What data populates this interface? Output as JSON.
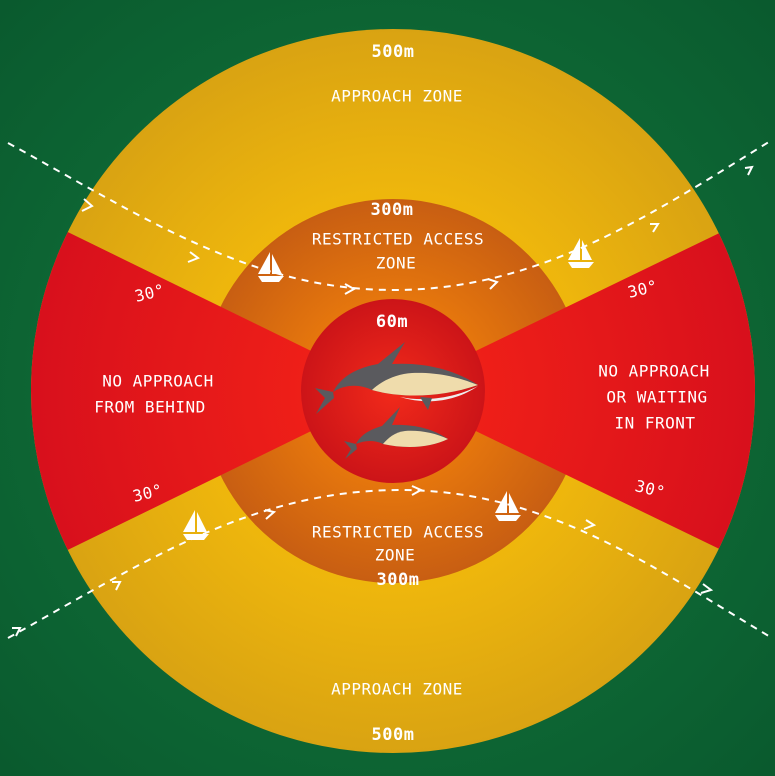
{
  "zones": {
    "approach_top": {
      "distance": "500m",
      "label": "APPROACH ZONE"
    },
    "restricted_top": {
      "distance": "300m",
      "label_lines": [
        "RESTRICTED ACCESS",
        "ZONE"
      ]
    },
    "core": {
      "distance": "60m"
    },
    "behind": {
      "label_lines": [
        "NO APPROACH",
        "FROM BEHIND"
      ],
      "angle_top": "30°",
      "angle_bottom": "30°"
    },
    "front": {
      "label_lines": [
        "NO APPROACH",
        "OR WAITING",
        "IN FRONT"
      ],
      "angle_top": "30°",
      "angle_bottom": "30°"
    },
    "restricted_bottom": {
      "label_lines": [
        "RESTRICTED ACCESS",
        "ZONE"
      ],
      "distance": "300m"
    },
    "approach_bottom": {
      "label": "APPROACH ZONE",
      "distance": "500m"
    }
  }
}
